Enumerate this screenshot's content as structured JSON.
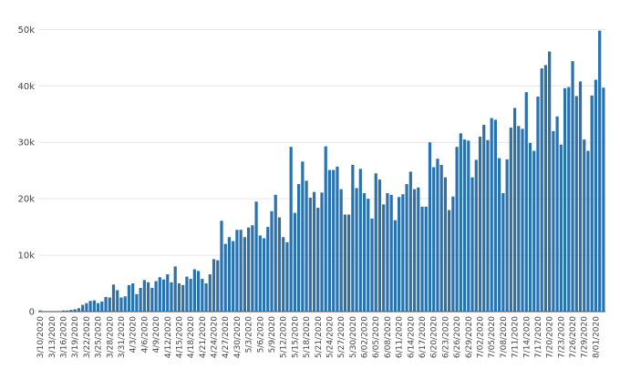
{
  "chart_data": {
    "type": "bar",
    "bar_color": "#2a72ad",
    "grid_color": "#e6e6e6",
    "grid": true,
    "ylim": [
      0,
      52000
    ],
    "y_ticks": [
      {
        "value": 0,
        "label": "0"
      },
      {
        "value": 10000,
        "label": "10k"
      },
      {
        "value": 20000,
        "label": "20k"
      },
      {
        "value": 30000,
        "label": "30k"
      },
      {
        "value": 40000,
        "label": "40k"
      },
      {
        "value": 50000,
        "label": "50k"
      }
    ],
    "x_tick_labels": [
      "3/10/2020",
      "3/13/2020",
      "3/16/2020",
      "3/19/2020",
      "3/22/2020",
      "3/25/2020",
      "3/28/2020",
      "3/31/2020",
      "4/3/2020",
      "4/6/2020",
      "4/9/2020",
      "4/12/2020",
      "4/15/2020",
      "4/18/2020",
      "4/21/2020",
      "4/24/2020",
      "4/27/2020",
      "4/30/2020",
      "5/3/2020",
      "5/6/2020",
      "5/9/2020",
      "5/12/2020",
      "5/15/2020",
      "5/18/2020",
      "5/21/2020",
      "5/24/2020",
      "5/27/2020",
      "5/30/2020",
      "6/02/2020",
      "6/05/2020",
      "6/08/2020",
      "6/11/2020",
      "6/14/2020",
      "6/17/2020",
      "6/20/2020",
      "6/23/2020",
      "6/26/2020",
      "6/29/2020",
      "7/02/2020",
      "7/05/2020",
      "7/08/2020",
      "7/11/2020",
      "7/14/2020",
      "7/17/2020",
      "7/20/2020",
      "7/23/2020",
      "7/26/2020",
      "7/29/2020",
      "8/01/2020"
    ],
    "start_date": "3/10/2020",
    "values": [
      200,
      0,
      0,
      0,
      0,
      100,
      200,
      200,
      300,
      400,
      600,
      1200,
      1500,
      1900,
      2000,
      1500,
      1800,
      2600,
      2500,
      4800,
      3800,
      2500,
      2700,
      4700,
      5000,
      3100,
      4200,
      5600,
      5200,
      4200,
      5400,
      6100,
      5700,
      6600,
      5200,
      8000,
      5000,
      4700,
      6200,
      5800,
      7500,
      7200,
      5800,
      5000,
      6600,
      9300,
      9100,
      16100,
      12000,
      13200,
      12500,
      14500,
      14500,
      13200,
      14900,
      15300,
      19500,
      13500,
      13000,
      15000,
      17800,
      20700,
      16700,
      13200,
      12300,
      29200,
      17500,
      22600,
      26600,
      23200,
      20200,
      21200,
      18400,
      21100,
      29300,
      25100,
      25100,
      25700,
      21700,
      17200,
      17200,
      26000,
      21900,
      25300,
      21000,
      20000,
      16500,
      24500,
      23400,
      19000,
      21000,
      20700,
      16200,
      20300,
      20800,
      22600,
      24800,
      21700,
      22000,
      18600,
      18600,
      30000,
      25600,
      27100,
      26000,
      23800,
      18000,
      20400,
      29200,
      31600,
      30500,
      30300,
      23800,
      26900,
      31000,
      33100,
      30400,
      34300,
      34000,
      27200,
      21000,
      27000,
      32600,
      36100,
      32900,
      32400,
      38900,
      29900,
      28500,
      38100,
      43100,
      43700,
      46100,
      32000,
      34600,
      29600,
      39600,
      39800,
      44400,
      38200,
      40800,
      30500,
      28500,
      38300,
      41100,
      49800,
      39700
    ]
  }
}
